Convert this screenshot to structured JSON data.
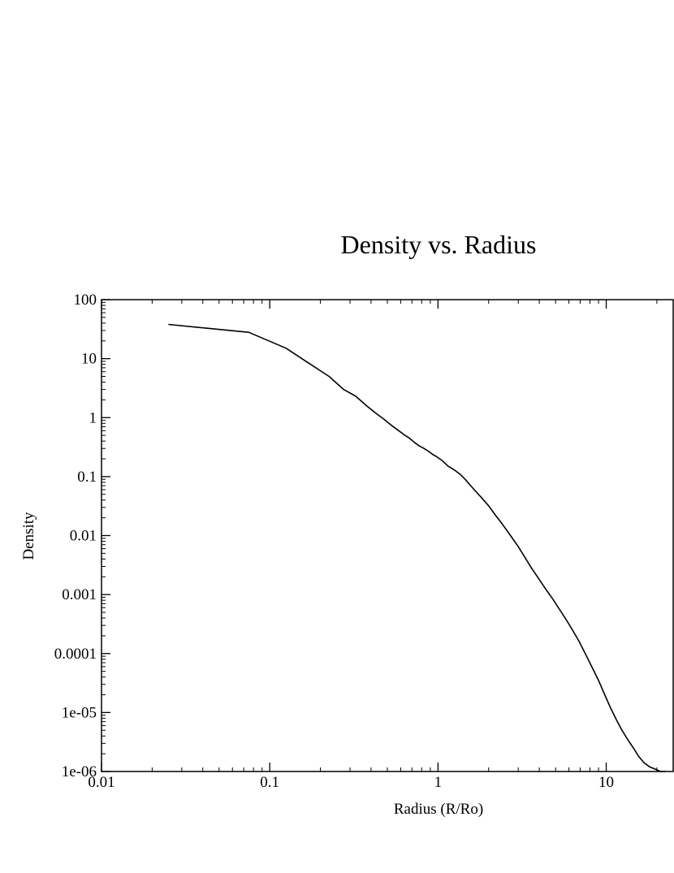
{
  "chart_data": {
    "type": "line",
    "title": "Density vs. Radius",
    "xlabel": "Radius (R/Ro)",
    "ylabel": "Density",
    "xscale": "log",
    "yscale": "log",
    "xlim": [
      0.01,
      25
    ],
    "ylim": [
      1e-06,
      100
    ],
    "grid": false,
    "legend": "none",
    "x_ticks": [
      {
        "value": 0.01,
        "label": "0.01"
      },
      {
        "value": 0.1,
        "label": "0.1"
      },
      {
        "value": 1,
        "label": "1"
      },
      {
        "value": 10,
        "label": "10"
      }
    ],
    "y_ticks": [
      {
        "value": 100,
        "label": "100"
      },
      {
        "value": 10,
        "label": "10"
      },
      {
        "value": 1,
        "label": "1"
      },
      {
        "value": 0.1,
        "label": "0.1"
      },
      {
        "value": 0.01,
        "label": "0.01"
      },
      {
        "value": 0.001,
        "label": "0.001"
      },
      {
        "value": 0.0001,
        "label": "0.0001"
      },
      {
        "value": 1e-05,
        "label": "1e-05"
      },
      {
        "value": 1e-06,
        "label": "1e-06"
      }
    ],
    "series": [
      {
        "color": "#000000",
        "x": [
          0.025,
          0.075,
          0.125,
          0.175,
          0.225,
          0.275,
          0.325,
          0.375,
          0.425,
          0.475,
          0.525,
          0.575,
          0.625,
          0.675,
          0.725,
          0.775,
          0.825,
          0.875,
          0.925,
          0.975,
          1.05,
          1.15,
          1.25,
          1.35,
          1.45,
          1.6,
          1.8,
          2.0,
          2.2,
          2.4,
          2.7,
          3.0,
          3.3,
          3.6,
          4.0,
          4.4,
          4.8,
          5.3,
          5.8,
          6.3,
          6.9,
          7.5,
          8.2,
          9.0,
          9.8,
          10.6,
          11.5,
          12.4,
          13.4,
          14.5,
          15.6,
          16.8,
          18.1,
          19.5,
          21.0,
          22.5
        ],
        "y": [
          38,
          28,
          15,
          8,
          5,
          3,
          2.3,
          1.6,
          1.2,
          0.95,
          0.75,
          0.62,
          0.52,
          0.45,
          0.38,
          0.33,
          0.3,
          0.27,
          0.24,
          0.22,
          0.19,
          0.15,
          0.13,
          0.11,
          0.09,
          0.065,
          0.045,
          0.032,
          0.022,
          0.016,
          0.01,
          0.0065,
          0.0042,
          0.0028,
          0.0018,
          0.0012,
          0.00085,
          0.00055,
          0.00037,
          0.00025,
          0.00016,
          0.0001,
          6e-05,
          3.5e-05,
          2e-05,
          1.2e-05,
          7.5e-06,
          5e-06,
          3.5e-06,
          2.5e-06,
          1.8e-06,
          1.4e-06,
          1.2e-06,
          1.1e-06,
          1e-06,
          1e-06
        ]
      }
    ]
  }
}
